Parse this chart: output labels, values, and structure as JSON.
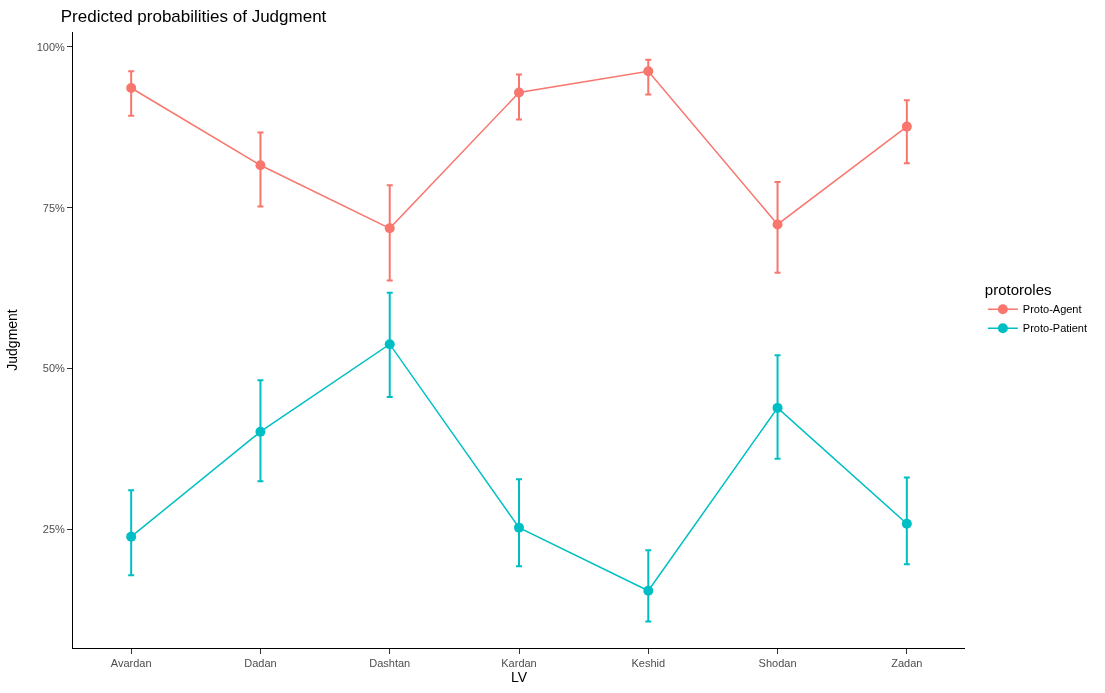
{
  "chart_data": {
    "type": "line",
    "title": "Predicted probabilities of Judgment",
    "xlabel": "LV",
    "ylabel": "Judgment",
    "legend_title": "protoroles",
    "categories": [
      "Avardan",
      "Dadan",
      "Dashtan",
      "Kardan",
      "Keshid",
      "Shodan",
      "Zadan"
    ],
    "series": [
      {
        "name": "Proto-Agent",
        "color": "#f8766d",
        "values": [
          93.6,
          81.6,
          71.8,
          92.9,
          96.2,
          72.4,
          87.6
        ],
        "errors": [
          [
            89.3,
            96.2
          ],
          [
            75.2,
            86.7
          ],
          [
            63.7,
            78.5
          ],
          [
            88.7,
            95.7
          ],
          [
            92.6,
            98.0
          ],
          [
            64.9,
            79.0
          ],
          [
            81.9,
            91.7
          ]
        ]
      },
      {
        "name": "Proto-Patient",
        "color": "#00bfc4",
        "values": [
          23.9,
          40.2,
          53.8,
          25.3,
          15.5,
          43.9,
          25.9
        ],
        "errors": [
          [
            17.9,
            31.1
          ],
          [
            32.5,
            48.2
          ],
          [
            45.6,
            61.8
          ],
          [
            19.3,
            32.8
          ],
          [
            10.7,
            21.8
          ],
          [
            36.0,
            52.1
          ],
          [
            19.6,
            33.1
          ]
        ]
      }
    ],
    "ylim": [
      6.6,
      102.3
    ],
    "yticks": [
      {
        "value": 25,
        "label": "25%"
      },
      {
        "value": 50,
        "label": "50%"
      },
      {
        "value": 75,
        "label": "75%"
      },
      {
        "value": 100,
        "label": "100%"
      }
    ],
    "legend": "right",
    "marker": "circle",
    "line_style": "solid"
  }
}
